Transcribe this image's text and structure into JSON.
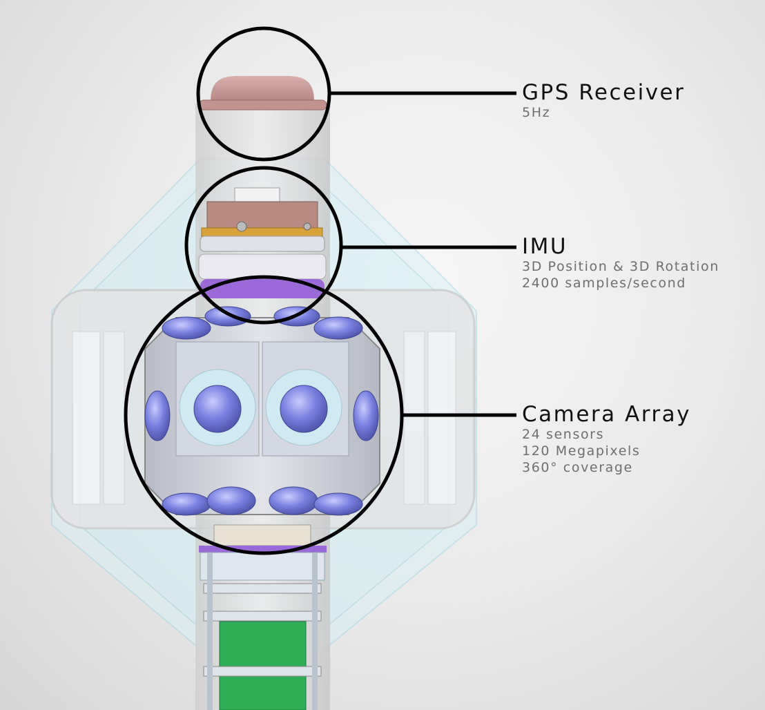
{
  "callouts": {
    "gps": {
      "title": "GPS Receiver",
      "details": [
        "5Hz"
      ]
    },
    "imu": {
      "title": "IMU",
      "details": [
        "3D Position & 3D Rotation",
        "2400 samples/second"
      ]
    },
    "camera": {
      "title": "Camera Array",
      "details": [
        "24 sensors",
        "120 Megapixels",
        "360° coverage"
      ]
    }
  },
  "colors": {
    "background": "#e9e9e9",
    "housing": "#dcdcdc",
    "gps_dome": "#c79a96",
    "imu_box": "#b98b80",
    "gold_plate": "#d9a23a",
    "lens": "#7c84e0",
    "purple_ring": "#9b6ad8",
    "pcb": "#2fae55",
    "outline": "#000000"
  }
}
